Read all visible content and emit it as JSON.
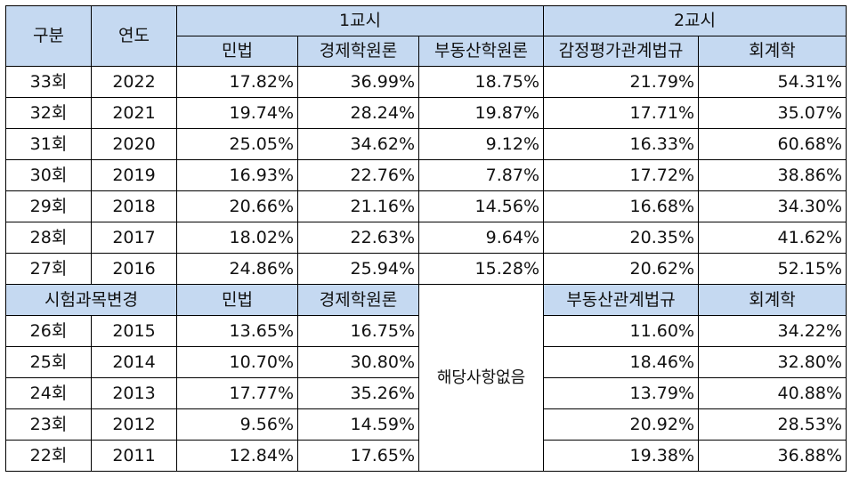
{
  "header": {
    "col_gubun": "구분",
    "col_year": "연도",
    "session1": "1교시",
    "session2": "2교시",
    "subjects": [
      "민법",
      "경제학원론",
      "부동산학원론",
      "감정평가관계법규",
      "회계학"
    ]
  },
  "rows_current": [
    {
      "round": "33회",
      "year": "2022",
      "values": [
        "17.82%",
        "36.99%",
        "18.75%",
        "21.79%",
        "54.31%"
      ]
    },
    {
      "round": "32회",
      "year": "2021",
      "values": [
        "19.74%",
        "28.24%",
        "19.87%",
        "17.71%",
        "35.07%"
      ]
    },
    {
      "round": "31회",
      "year": "2020",
      "values": [
        "25.05%",
        "34.62%",
        "9.12%",
        "16.33%",
        "60.68%"
      ]
    },
    {
      "round": "30회",
      "year": "2019",
      "values": [
        "16.93%",
        "22.76%",
        "7.87%",
        "17.72%",
        "38.86%"
      ]
    },
    {
      "round": "29회",
      "year": "2018",
      "values": [
        "20.66%",
        "21.16%",
        "14.56%",
        "16.68%",
        "34.30%"
      ]
    },
    {
      "round": "28회",
      "year": "2017",
      "values": [
        "18.02%",
        "22.63%",
        "9.64%",
        "20.35%",
        "41.62%"
      ]
    },
    {
      "round": "27회",
      "year": "2016",
      "values": [
        "24.86%",
        "25.94%",
        "15.28%",
        "20.62%",
        "52.15%"
      ]
    }
  ],
  "change_header": {
    "label": "시험과목변경",
    "subjects": [
      "민법",
      "경제학원론",
      "부동산관계법규",
      "회계학"
    ],
    "not_applicable": "해당사항없음"
  },
  "rows_old": [
    {
      "round": "26회",
      "year": "2015",
      "values": [
        "13.65%",
        "16.75%",
        "11.60%",
        "34.22%"
      ]
    },
    {
      "round": "25회",
      "year": "2014",
      "values": [
        "10.70%",
        "30.80%",
        "18.46%",
        "32.80%"
      ]
    },
    {
      "round": "24회",
      "year": "2013",
      "values": [
        "17.77%",
        "35.26%",
        "13.79%",
        "40.88%"
      ]
    },
    {
      "round": "23회",
      "year": "2012",
      "values": [
        "9.56%",
        "14.59%",
        "20.92%",
        "28.53%"
      ]
    },
    {
      "round": "22회",
      "year": "2011",
      "values": [
        "12.84%",
        "17.65%",
        "19.38%",
        "36.88%"
      ]
    }
  ]
}
